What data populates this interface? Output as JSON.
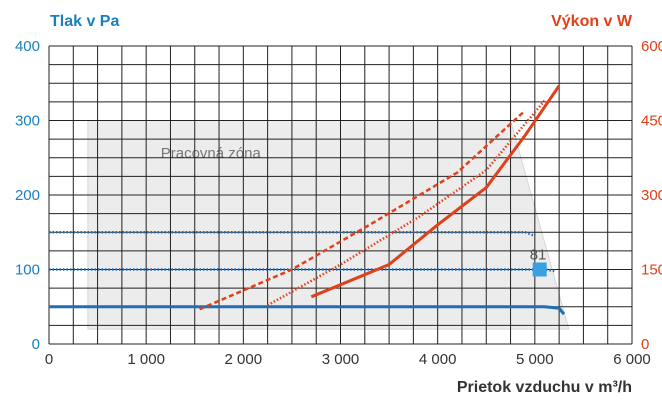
{
  "chart_data": {
    "type": "line",
    "ylabel_left": "Tlak v Pa",
    "ylabel_right": "Výkon v W",
    "xlabel": "Prietok vzduchu v m³/h",
    "xlim": [
      0,
      6000
    ],
    "ylim_left": [
      0,
      400
    ],
    "ylim_right": [
      0,
      600
    ],
    "x_ticks": [
      "0",
      "1 000",
      "2 000",
      "3 000",
      "4 000",
      "5 000",
      "6 000"
    ],
    "y_left_ticks": [
      "0",
      "100",
      "200",
      "300",
      "400"
    ],
    "y_right_ticks": [
      "0",
      "150",
      "300",
      "450",
      "600"
    ],
    "grid": true,
    "zone_label": "Pracovná zóna",
    "zone": [
      [
        400,
        300
      ],
      [
        4750,
        300
      ],
      [
        5350,
        20
      ],
      [
        400,
        20
      ]
    ],
    "pressure_series": [
      {
        "style": "solid",
        "points": [
          [
            0,
            50
          ],
          [
            5100,
            50
          ],
          [
            5250,
            48
          ],
          [
            5300,
            40
          ]
        ]
      },
      {
        "style": "dotted",
        "points": [
          [
            0,
            100
          ],
          [
            5100,
            100
          ],
          [
            5200,
            98
          ]
        ]
      },
      {
        "style": "dotted",
        "points": [
          [
            0,
            150
          ],
          [
            4900,
            150
          ],
          [
            5000,
            145
          ]
        ]
      }
    ],
    "power_series": [
      {
        "style": "solid",
        "points": [
          [
            2700,
            95
          ],
          [
            3500,
            160
          ],
          [
            4000,
            240
          ],
          [
            4500,
            315
          ],
          [
            4900,
            420
          ],
          [
            5250,
            520
          ]
        ]
      },
      {
        "style": "dotted",
        "points": [
          [
            2250,
            78
          ],
          [
            3000,
            160
          ],
          [
            3800,
            255
          ],
          [
            4500,
            350
          ],
          [
            5100,
            490
          ]
        ]
      },
      {
        "style": "dashed",
        "points": [
          [
            1550,
            70
          ],
          [
            2500,
            150
          ],
          [
            3300,
            240
          ],
          [
            4200,
            345
          ],
          [
            4900,
            470
          ]
        ]
      }
    ],
    "operating_point": {
      "x": 5050,
      "y": 100,
      "label": "81"
    },
    "colors": {
      "pressure": "#1f6fb5",
      "power": "#e0401a",
      "zone": "#ececec",
      "grid": "#222222",
      "marker": "#3aa0e0"
    }
  }
}
